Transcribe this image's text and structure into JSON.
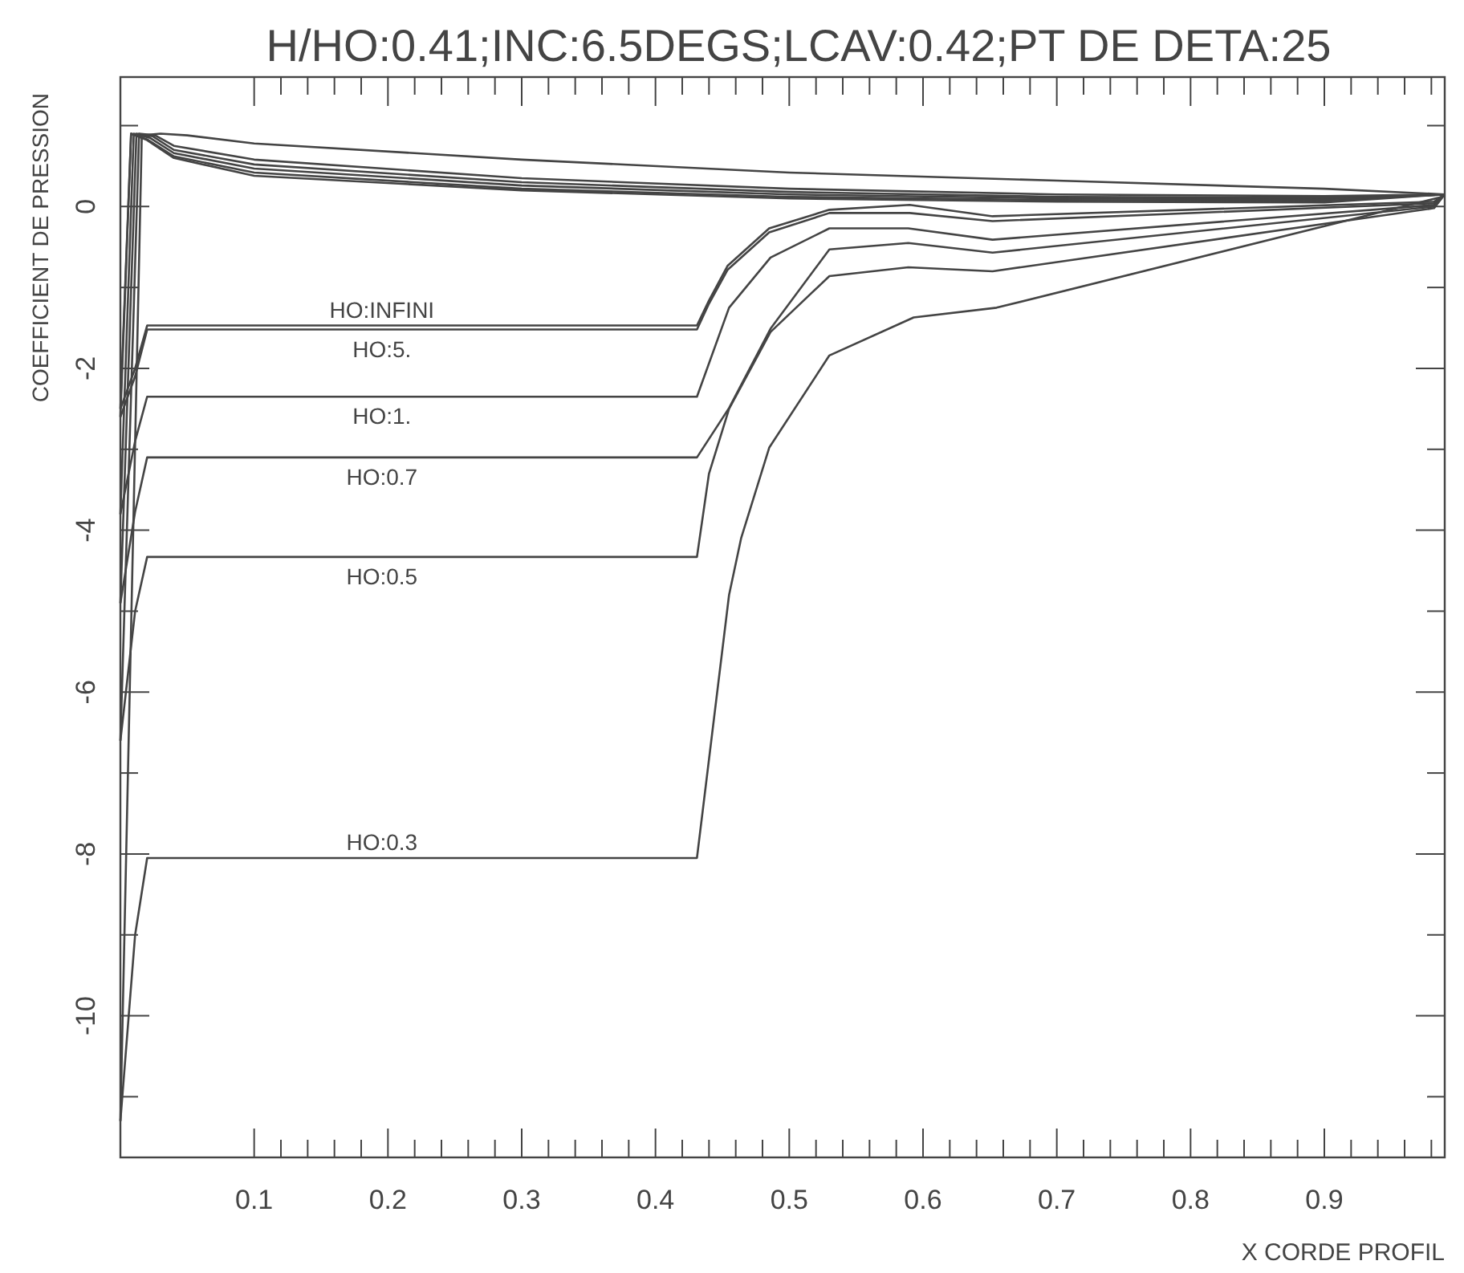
{
  "chart_data": {
    "type": "line",
    "title": "H/HO:0.41;INC:6.5DEGS;LCAV:0.42;PT DE DETA:25",
    "xlabel": "X CORDE PROFIL",
    "ylabel": "COEFFICIENT DE PRESSION",
    "xlim": [
      0,
      0.99
    ],
    "ylim": [
      -11.75,
      1.6
    ],
    "xticks": [
      {
        "value": 0.1,
        "label": "0.1"
      },
      {
        "value": 0.12,
        "label": null
      },
      {
        "value": 0.14,
        "label": null
      },
      {
        "value": 0.16,
        "label": null
      },
      {
        "value": 0.18,
        "label": null
      },
      {
        "value": 0.2,
        "label": "0.2"
      },
      {
        "value": 0.22,
        "label": null
      },
      {
        "value": 0.24,
        "label": null
      },
      {
        "value": 0.26,
        "label": null
      },
      {
        "value": 0.28,
        "label": null
      },
      {
        "value": 0.3,
        "label": "0.3"
      },
      {
        "value": 0.32,
        "label": null
      },
      {
        "value": 0.34,
        "label": null
      },
      {
        "value": 0.36,
        "label": null
      },
      {
        "value": 0.38,
        "label": null
      },
      {
        "value": 0.4,
        "label": "0.4"
      },
      {
        "value": 0.42,
        "label": null
      },
      {
        "value": 0.44,
        "label": null
      },
      {
        "value": 0.46,
        "label": null
      },
      {
        "value": 0.48,
        "label": null
      },
      {
        "value": 0.5,
        "label": "0.5"
      },
      {
        "value": 0.52,
        "label": null
      },
      {
        "value": 0.54,
        "label": null
      },
      {
        "value": 0.56,
        "label": null
      },
      {
        "value": 0.58,
        "label": null
      },
      {
        "value": 0.6,
        "label": "0.6"
      },
      {
        "value": 0.62,
        "label": null
      },
      {
        "value": 0.64,
        "label": null
      },
      {
        "value": 0.66,
        "label": null
      },
      {
        "value": 0.68,
        "label": null
      },
      {
        "value": 0.7,
        "label": "0.7"
      },
      {
        "value": 0.72,
        "label": null
      },
      {
        "value": 0.74,
        "label": null
      },
      {
        "value": 0.76,
        "label": null
      },
      {
        "value": 0.78,
        "label": null
      },
      {
        "value": 0.8,
        "label": "0.8"
      },
      {
        "value": 0.82,
        "label": null
      },
      {
        "value": 0.84,
        "label": null
      },
      {
        "value": 0.86,
        "label": null
      },
      {
        "value": 0.88,
        "label": null
      },
      {
        "value": 0.9,
        "label": "0.9"
      },
      {
        "value": 0.92,
        "label": null
      },
      {
        "value": 0.94,
        "label": null
      },
      {
        "value": 0.96,
        "label": null
      },
      {
        "value": 0.98,
        "label": null
      }
    ],
    "yticks": [
      {
        "value": -11,
        "label": null
      },
      -10,
      {
        "value": -9,
        "label": null
      },
      -8,
      {
        "value": -7,
        "label": null
      },
      -6,
      {
        "value": -5,
        "label": null
      },
      -4,
      {
        "value": -3,
        "label": null
      },
      -2,
      {
        "value": -1,
        "label": null
      },
      0,
      {
        "value": 1,
        "label": null
      }
    ],
    "grid": false,
    "legend": false,
    "marker": "none",
    "line_style": "solid",
    "series": [
      {
        "name": "HO:INFINI",
        "color": "#444444",
        "x": [
          0,
          0.011,
          0.02,
          0.431,
          0.44,
          0.454,
          0.485,
          0.53,
          0.59,
          0.652,
          0.982,
          0.99
        ],
        "values": [
          -2.5,
          -2.0,
          -1.47,
          -1.47,
          -1.16,
          -0.73,
          -0.27,
          -0.04,
          0.02,
          -0.12,
          0.06,
          0.15
        ]
      },
      {
        "name": "HO:5.",
        "color": "#444444",
        "x": [
          0,
          0.011,
          0.02,
          0.431,
          0.44,
          0.454,
          0.485,
          0.53,
          0.59,
          0.652,
          0.982,
          0.99
        ],
        "values": [
          -2.6,
          -2.1,
          -1.52,
          -1.52,
          -1.2,
          -0.78,
          -0.32,
          -0.08,
          -0.08,
          -0.18,
          0.04,
          0.15
        ]
      },
      {
        "name": "HO:1.",
        "color": "#444444",
        "x": [
          0,
          0.011,
          0.02,
          0.431,
          0.455,
          0.486,
          0.53,
          0.589,
          0.652,
          0.982,
          0.99
        ],
        "values": [
          -3.8,
          -2.9,
          -2.35,
          -2.35,
          -1.25,
          -0.63,
          -0.27,
          -0.27,
          -0.41,
          0.02,
          0.15
        ]
      },
      {
        "name": "HO:0.7",
        "color": "#444444",
        "x": [
          0,
          0.011,
          0.02,
          0.431,
          0.455,
          0.486,
          0.53,
          0.589,
          0.652,
          0.982,
          0.99
        ],
        "values": [
          -4.9,
          -3.77,
          -3.1,
          -3.1,
          -2.49,
          -1.51,
          -0.53,
          -0.45,
          -0.57,
          0.0,
          0.15
        ]
      },
      {
        "name": "HO:0.5",
        "color": "#444444",
        "x": [
          0,
          0.011,
          0.02,
          0.431,
          0.44,
          0.455,
          0.486,
          0.53,
          0.589,
          0.652,
          0.982,
          0.99
        ],
        "values": [
          -6.6,
          -5.0,
          -4.33,
          -4.33,
          -3.3,
          -2.5,
          -1.55,
          -0.86,
          -0.75,
          -0.8,
          -0.02,
          0.15
        ]
      },
      {
        "name": "HO:0.3",
        "color": "#444444",
        "x": [
          0,
          0.011,
          0.02,
          0.431,
          0.455,
          0.464,
          0.485,
          0.53,
          0.593,
          0.655,
          0.988
        ],
        "values": [
          -11.3,
          -9.0,
          -8.05,
          -8.05,
          -4.8,
          -4.1,
          -2.98,
          -1.84,
          -1.37,
          -1.25,
          0.12
        ]
      },
      {
        "color": "#444444",
        "x": [
          0,
          0.008,
          0.02,
          0.04,
          0.1,
          0.3,
          0.5,
          0.7,
          0.9,
          0.99
        ],
        "values": [
          -2.5,
          0.9,
          0.82,
          0.6,
          0.38,
          0.2,
          0.1,
          0.06,
          0.05,
          0.15
        ]
      },
      {
        "color": "#444444",
        "x": [
          0,
          0.008,
          0.02,
          0.04,
          0.1,
          0.3,
          0.5,
          0.7,
          0.9,
          0.99
        ],
        "values": [
          -2.6,
          0.9,
          0.83,
          0.62,
          0.42,
          0.22,
          0.12,
          0.08,
          0.07,
          0.15
        ]
      },
      {
        "color": "#444444",
        "x": [
          0,
          0.01,
          0.022,
          0.04,
          0.1,
          0.3,
          0.5,
          0.7,
          0.9,
          0.99
        ],
        "values": [
          -3.8,
          0.9,
          0.85,
          0.66,
          0.47,
          0.26,
          0.15,
          0.1,
          0.09,
          0.15
        ]
      },
      {
        "color": "#444444",
        "x": [
          0,
          0.012,
          0.024,
          0.04,
          0.1,
          0.3,
          0.5,
          0.7,
          0.9,
          0.99
        ],
        "values": [
          -4.9,
          0.9,
          0.87,
          0.7,
          0.52,
          0.3,
          0.18,
          0.12,
          0.11,
          0.15
        ]
      },
      {
        "color": "#444444",
        "x": [
          0,
          0.014,
          0.026,
          0.04,
          0.1,
          0.3,
          0.5,
          0.7,
          0.9,
          0.99
        ],
        "values": [
          -6.6,
          0.9,
          0.88,
          0.75,
          0.58,
          0.35,
          0.22,
          0.15,
          0.13,
          0.15
        ]
      },
      {
        "color": "#444444",
        "x": [
          0,
          0.016,
          0.03,
          0.05,
          0.1,
          0.3,
          0.5,
          0.7,
          0.9,
          0.99
        ],
        "values": [
          -11.3,
          0.88,
          0.9,
          0.88,
          0.78,
          0.58,
          0.42,
          0.32,
          0.22,
          0.15
        ]
      }
    ]
  }
}
